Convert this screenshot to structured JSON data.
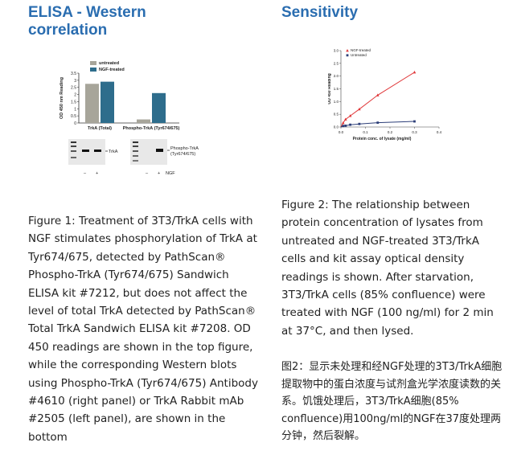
{
  "left": {
    "title": "ELISA - Western correlation",
    "caption": "Figure 1: Treatment of 3T3/TrkA cells with NGF stimulates phosphorylation of TrkA at Tyr674/675, detected by PathScan® Phospho-TrkA (Tyr674/675) Sandwich ELISA kit #7212, but does not affect the level of total TrkA detected by PathScan® Total TrkA Sandwich ELISA kit #7208. OD 450 readings are shown in the top figure, while the corresponding Western blots using Phospho-TrkA (Tyr674/675) Antibody #4610 (right panel) or TrkA Rabbit mAb #2505 (left panel), are shown in the bottom"
  },
  "right": {
    "title": "Sensitivity",
    "caption": "Figure 2: The relationship between protein concentration of lysates from untreated and NGF-treated 3T3/TrkA cells and kit assay optical density readings is shown. After starvation, 3T3/TrkA cells (85% confluence) were treated with NGF (100 ng/ml) for 2 min at 37°C, and then lysed.",
    "caption_cn": "图2：显示未处理和经NGF处理的3T3/TrkA细胞提取物中的蛋白浓度与试剂盒光学浓度读数的关系。饥饿处理后，3T3/TrkA细胞(85% confluence)用100ng/ml的NGF在37度处理两分钟，然后裂解。"
  },
  "blots": {
    "label_trka": "TrkA",
    "label_phospho": "Phospho-TrkA",
    "label_phospho2": "(Tyr674/675)",
    "lane_minus": "–",
    "lane_plus": "+",
    "ngf": "NGF"
  },
  "chart_data": [
    {
      "type": "bar",
      "categories": [
        "TrkA (Total)",
        "Phospho-TrkA (Tyr674/675)"
      ],
      "series": [
        {
          "name": "untreated",
          "values": [
            2.75,
            0.25
          ],
          "color": "#a7a59a"
        },
        {
          "name": "NGF-treated",
          "values": [
            2.9,
            2.1
          ],
          "color": "#2e6d8c"
        }
      ],
      "title": "",
      "xlabel": "",
      "ylabel": "OD 450 nm Reading",
      "ylim": [
        0,
        3.5
      ],
      "yticks": [
        "0",
        "0.5",
        "1",
        "1.5",
        "2",
        "2.5",
        "3",
        "3.5"
      ],
      "legend": "top-left",
      "grid": false
    },
    {
      "type": "line",
      "series": [
        {
          "name": "NGF-treated",
          "x": [
            0.009,
            0.019,
            0.038,
            0.075,
            0.15,
            0.3
          ],
          "values": [
            0.16,
            0.3,
            0.44,
            0.7,
            1.25,
            2.15
          ],
          "color": "#e0383a",
          "marker": "triangle"
        },
        {
          "name": "Untreated",
          "x": [
            0.009,
            0.019,
            0.038,
            0.075,
            0.15,
            0.3
          ],
          "values": [
            0.04,
            0.05,
            0.09,
            0.12,
            0.17,
            0.22
          ],
          "color": "#2c3e78",
          "marker": "square"
        }
      ],
      "title": "",
      "xlabel": "Protein conc. of lysate (mg/ml)",
      "ylabel": "OD 450 Reading",
      "xlim": [
        0,
        0.4
      ],
      "ylim": [
        0,
        3
      ],
      "xticks": [
        "0.0",
        "0.1",
        "0.2",
        "0.3",
        "0.4"
      ],
      "yticks": [
        "0.0",
        "0.5",
        "1.0",
        "1.5",
        "2.0",
        "2.5",
        "3.0"
      ],
      "legend": "top-left",
      "grid": false
    }
  ]
}
